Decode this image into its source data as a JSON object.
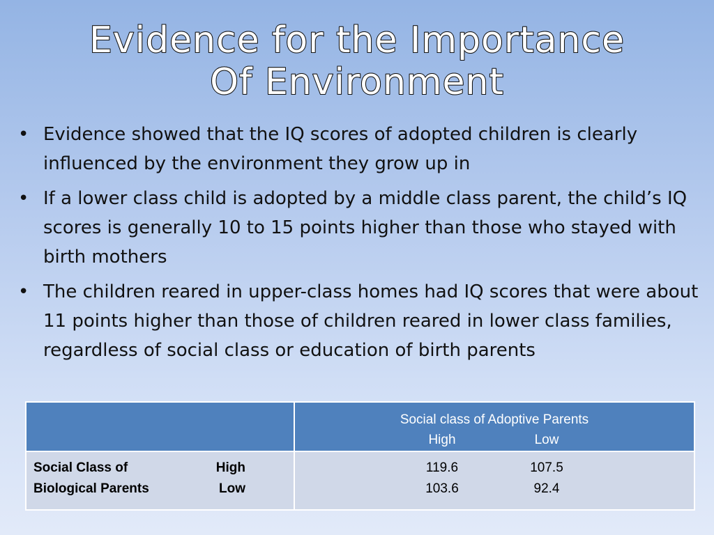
{
  "title": {
    "line1": "Evidence for the Importance",
    "line2": "Of Environment"
  },
  "bullets": [
    "Evidence showed that the IQ scores of adopted children is clearly influenced by the environment they grow up in",
    "If a lower class child is adopted by a middle class parent, the child’s IQ scores is generally 10 to 15 points higher than those who stayed with birth mothers",
    "The children reared in upper-class homes had IQ scores that were about 11 points higher than those of children reared in lower class families, regardless of social class or education of birth parents"
  ],
  "table": {
    "header": {
      "caption": "Social class of Adoptive Parents",
      "col_high": "High",
      "col_low": "Low"
    },
    "rows": {
      "label_line1": "Social Class of",
      "label_line2": "Biological Parents",
      "row_high": "High",
      "row_low": "Low",
      "high_high": "119.6",
      "high_low": "107.5",
      "low_high": "103.6",
      "low_low": "92.4"
    }
  }
}
